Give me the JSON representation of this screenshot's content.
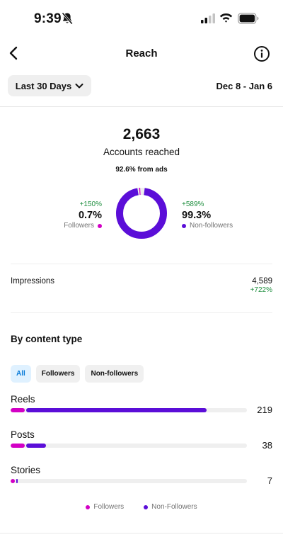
{
  "status": {
    "time": "9:39"
  },
  "nav": {
    "title": "Reach"
  },
  "range": {
    "label": "Last 30 Days",
    "dates": "Dec 8 - Jan 6"
  },
  "summary": {
    "total": "2,663",
    "label": "Accounts reached",
    "ads_note": "92.6% from ads"
  },
  "split": {
    "followers": {
      "change": "+150%",
      "pct": "0.7%",
      "label": "Followers",
      "fraction": 0.007
    },
    "non_followers": {
      "change": "+589%",
      "pct": "99.3%",
      "label": "Non-followers",
      "fraction": 0.993
    }
  },
  "impressions": {
    "label": "Impressions",
    "value": "4,589",
    "change": "+722%"
  },
  "content": {
    "title": "By content type",
    "filters": [
      "All",
      "Followers",
      "Non-followers"
    ],
    "active_filter": "All",
    "types": [
      {
        "name": "Reels",
        "value": "219",
        "followers_fraction": 0.06,
        "total_fraction": 0.83
      },
      {
        "name": "Posts",
        "value": "38",
        "followers_fraction": 0.06,
        "total_fraction": 0.15
      },
      {
        "name": "Stories",
        "value": "7",
        "followers_fraction": 0.018,
        "total_fraction": 0.028
      }
    ],
    "legend": {
      "followers": "Followers",
      "non_followers": "Non-Followers"
    }
  },
  "colors": {
    "followers": "#d300c5",
    "non_followers": "#5b0ed8",
    "positive": "#1e8e3e"
  }
}
